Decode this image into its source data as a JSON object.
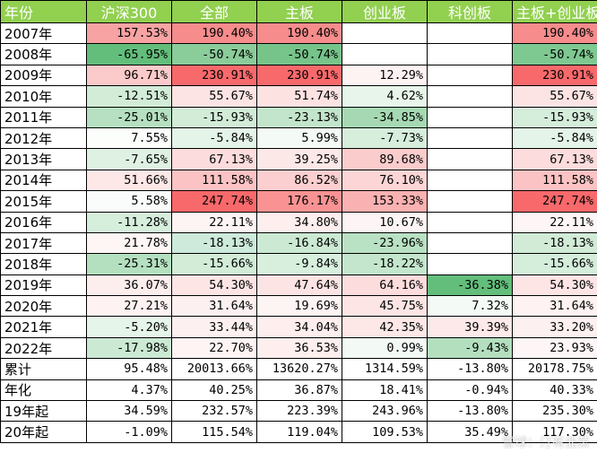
{
  "headers": [
    "年份",
    "沪深300",
    "全部",
    "主板",
    "创业板",
    "科创板",
    "主板+创业板"
  ],
  "rows": [
    {
      "label": "2007年",
      "cells": [
        {
          "v": "157.53%",
          "c": "#f8a3a3"
        },
        {
          "v": "190.40%",
          "c": "#f68c8c"
        },
        {
          "v": "190.40%",
          "c": "#f68c8c"
        },
        {
          "v": "",
          "c": "#ffffff"
        },
        {
          "v": "",
          "c": "#ffffff"
        },
        {
          "v": "190.40%",
          "c": "#f68c8c"
        }
      ]
    },
    {
      "label": "2008年",
      "cells": [
        {
          "v": "-65.95%",
          "c": "#63be7b"
        },
        {
          "v": "-50.74%",
          "c": "#8acc9a"
        },
        {
          "v": "-50.74%",
          "c": "#76c48a"
        },
        {
          "v": "",
          "c": "#ffffff"
        },
        {
          "v": "",
          "c": "#ffffff"
        },
        {
          "v": "-50.74%",
          "c": "#7ec891"
        }
      ]
    },
    {
      "label": "2009年",
      "cells": [
        {
          "v": "96.71%",
          "c": "#fbcaca"
        },
        {
          "v": "230.91%",
          "c": "#f8696b"
        },
        {
          "v": "230.91%",
          "c": "#f8696b"
        },
        {
          "v": "12.29%",
          "c": "#fdf3f3"
        },
        {
          "v": "",
          "c": "#ffffff"
        },
        {
          "v": "230.91%",
          "c": "#f8696b"
        }
      ]
    },
    {
      "label": "2010年",
      "cells": [
        {
          "v": "-12.51%",
          "c": "#d2ecd8"
        },
        {
          "v": "55.67%",
          "c": "#fde4e4"
        },
        {
          "v": "51.74%",
          "c": "#fde2e2"
        },
        {
          "v": "4.62%",
          "c": "#e8f5ea"
        },
        {
          "v": "",
          "c": "#ffffff"
        },
        {
          "v": "55.67%",
          "c": "#fde4e4"
        }
      ]
    },
    {
      "label": "2011年",
      "cells": [
        {
          "v": "-25.01%",
          "c": "#b6e0c1"
        },
        {
          "v": "-15.93%",
          "c": "#d2ecd8"
        },
        {
          "v": "-23.13%",
          "c": "#c2e5cb"
        },
        {
          "v": "-34.85%",
          "c": "#a6d9b3"
        },
        {
          "v": "",
          "c": "#ffffff"
        },
        {
          "v": "-15.93%",
          "c": "#d5eddb"
        }
      ]
    },
    {
      "label": "2012年",
      "cells": [
        {
          "v": "7.55%",
          "c": "#fcfefc"
        },
        {
          "v": "-5.84%",
          "c": "#e4f4e8"
        },
        {
          "v": "5.99%",
          "c": "#f4faf5"
        },
        {
          "v": "-7.73%",
          "c": "#d7eedd"
        },
        {
          "v": "",
          "c": "#ffffff"
        },
        {
          "v": "-5.84%",
          "c": "#e4f4e8"
        }
      ]
    },
    {
      "label": "2013年",
      "cells": [
        {
          "v": "-7.65%",
          "c": "#dff1e3"
        },
        {
          "v": "67.13%",
          "c": "#fcdcdc"
        },
        {
          "v": "39.25%",
          "c": "#fde8e8"
        },
        {
          "v": "89.68%",
          "c": "#fbcccc"
        },
        {
          "v": "",
          "c": "#ffffff"
        },
        {
          "v": "67.13%",
          "c": "#fcdcdc"
        }
      ]
    },
    {
      "label": "2014年",
      "cells": [
        {
          "v": "51.66%",
          "c": "#fde7e7"
        },
        {
          "v": "111.58%",
          "c": "#fbc3c3"
        },
        {
          "v": "86.52%",
          "c": "#fbcfcf"
        },
        {
          "v": "76.10%",
          "c": "#fcd6d6"
        },
        {
          "v": "",
          "c": "#ffffff"
        },
        {
          "v": "111.58%",
          "c": "#fbc3c3"
        }
      ]
    },
    {
      "label": "2015年",
      "cells": [
        {
          "v": "5.58%",
          "c": "#f9fcfa"
        },
        {
          "v": "247.74%",
          "c": "#f8696b"
        },
        {
          "v": "176.17%",
          "c": "#f99393"
        },
        {
          "v": "153.33%",
          "c": "#fab1b1"
        },
        {
          "v": "",
          "c": "#ffffff"
        },
        {
          "v": "247.74%",
          "c": "#f8696b"
        }
      ]
    },
    {
      "label": "2016年",
      "cells": [
        {
          "v": "-11.28%",
          "c": "#d6eedc"
        },
        {
          "v": "22.11%",
          "c": "#fdf4f4"
        },
        {
          "v": "34.80%",
          "c": "#feeeee"
        },
        {
          "v": "10.67%",
          "c": "#fdf5f5"
        },
        {
          "v": "",
          "c": "#ffffff"
        },
        {
          "v": "22.11%",
          "c": "#fef6f6"
        }
      ]
    },
    {
      "label": "2017年",
      "cells": [
        {
          "v": "21.78%",
          "c": "#fef5f5"
        },
        {
          "v": "-18.13%",
          "c": "#cdeada"
        },
        {
          "v": "-16.84%",
          "c": "#cbe9d3"
        },
        {
          "v": "-23.96%",
          "c": "#b9e1c3"
        },
        {
          "v": "",
          "c": "#ffffff"
        },
        {
          "v": "-18.13%",
          "c": "#d1ebd7"
        }
      ]
    },
    {
      "label": "2018年",
      "cells": [
        {
          "v": "-25.31%",
          "c": "#b5e0c0"
        },
        {
          "v": "-15.66%",
          "c": "#d2ecd8"
        },
        {
          "v": "-9.84%",
          "c": "#d8efde"
        },
        {
          "v": "-18.22%",
          "c": "#c4e6cd"
        },
        {
          "v": "",
          "c": "#ffffff"
        },
        {
          "v": "-15.66%",
          "c": "#d5eddb"
        }
      ]
    },
    {
      "label": "2019年",
      "cells": [
        {
          "v": "36.07%",
          "c": "#fdeeee"
        },
        {
          "v": "54.30%",
          "c": "#fde5e5"
        },
        {
          "v": "47.64%",
          "c": "#fde4e4"
        },
        {
          "v": "64.16%",
          "c": "#fcdcdc"
        },
        {
          "v": "-36.38%",
          "c": "#63be7b"
        },
        {
          "v": "54.30%",
          "c": "#fde5e5"
        }
      ]
    },
    {
      "label": "2020年",
      "cells": [
        {
          "v": "27.21%",
          "c": "#fef2f2"
        },
        {
          "v": "31.64%",
          "c": "#fdf0f0"
        },
        {
          "v": "19.69%",
          "c": "#fdf4f4"
        },
        {
          "v": "45.75%",
          "c": "#fde5e5"
        },
        {
          "v": "7.32%",
          "c": "#f4fbf6"
        },
        {
          "v": "31.64%",
          "c": "#fef2f2"
        }
      ]
    },
    {
      "label": "2021年",
      "cells": [
        {
          "v": "-5.20%",
          "c": "#e6f5ea"
        },
        {
          "v": "33.44%",
          "c": "#fdf0f0"
        },
        {
          "v": "34.04%",
          "c": "#feeeee"
        },
        {
          "v": "42.35%",
          "c": "#fde7e7"
        },
        {
          "v": "39.39%",
          "c": "#fde9e9"
        },
        {
          "v": "33.20%",
          "c": "#fdf0f0"
        }
      ]
    },
    {
      "label": "2022年",
      "cells": [
        {
          "v": "-17.98%",
          "c": "#cbe9d3"
        },
        {
          "v": "22.70%",
          "c": "#fef4f4"
        },
        {
          "v": "36.53%",
          "c": "#feeeee"
        },
        {
          "v": "0.99%",
          "c": "#f3faf5"
        },
        {
          "v": "-9.43%",
          "c": "#b3dfbf"
        },
        {
          "v": "23.93%",
          "c": "#fef6f6"
        }
      ]
    }
  ],
  "summary": [
    {
      "label": "累计",
      "cells": [
        "95.48%",
        "20013.66%",
        "13620.27%",
        "1314.59%",
        "-13.80%",
        "20178.75%"
      ]
    },
    {
      "label": "年化",
      "cells": [
        "4.37%",
        "40.25%",
        "36.87%",
        "18.41%",
        "-0.94%",
        "40.33%"
      ]
    },
    {
      "label": "19年起",
      "cells": [
        "34.59%",
        "232.57%",
        "223.39%",
        "243.96%",
        "-13.80%",
        "235.30%"
      ]
    },
    {
      "label": "20年起",
      "cells": [
        "-1.09%",
        "115.54%",
        "119.04%",
        "109.53%",
        "35.49%",
        "117.30%"
      ]
    }
  ],
  "watermark": "雪球：汀有韭菜"
}
